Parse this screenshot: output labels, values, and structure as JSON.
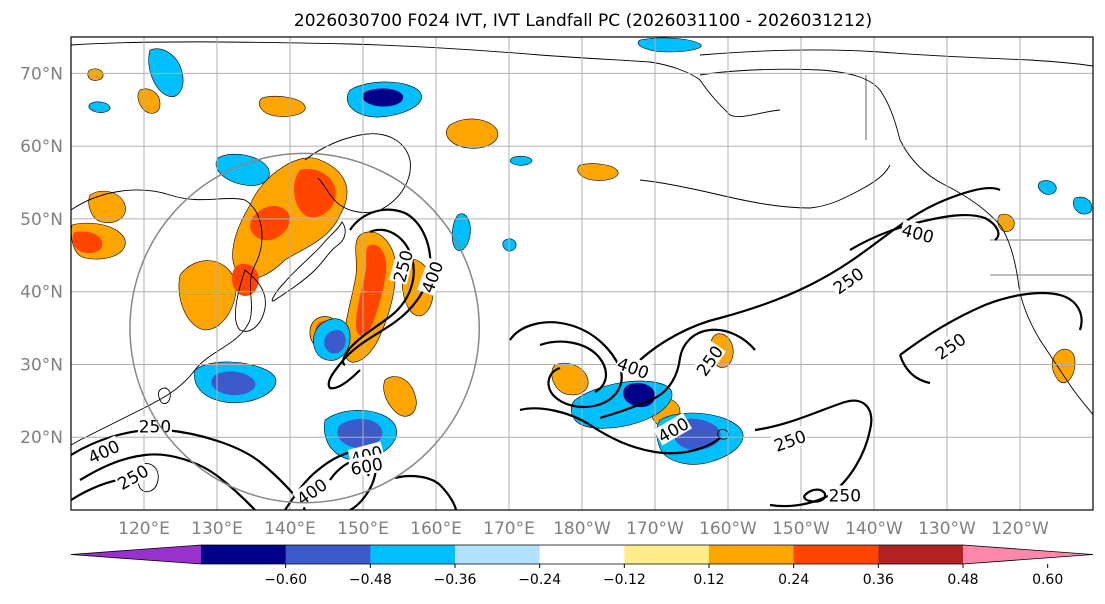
{
  "title": "2026030700 F024 IVT, IVT Landfall PC (2026031100 - 2026031212)",
  "map": {
    "lon_range": [
      110,
      250
    ],
    "lat_range": [
      10,
      75
    ],
    "lon_ticks": [
      {
        "lon": 120,
        "label": "120°E"
      },
      {
        "lon": 130,
        "label": "130°E"
      },
      {
        "lon": 140,
        "label": "140°E"
      },
      {
        "lon": 150,
        "label": "150°E"
      },
      {
        "lon": 160,
        "label": "160°E"
      },
      {
        "lon": 170,
        "label": "170°E"
      },
      {
        "lon": 180,
        "label": "180°W"
      },
      {
        "lon": 190,
        "label": "170°W"
      },
      {
        "lon": 200,
        "label": "160°W"
      },
      {
        "lon": 210,
        "label": "150°W"
      },
      {
        "lon": 220,
        "label": "140°W"
      },
      {
        "lon": 230,
        "label": "130°W"
      },
      {
        "lon": 240,
        "label": "120°W"
      }
    ],
    "lat_ticks": [
      {
        "lat": 70,
        "label": "70°N"
      },
      {
        "lat": 60,
        "label": "60°N"
      },
      {
        "lat": 50,
        "label": "50°N"
      },
      {
        "lat": 40,
        "label": "40°N"
      },
      {
        "lat": 30,
        "label": "30°N"
      },
      {
        "lat": 20,
        "label": "20°N"
      }
    ],
    "gridlines": true,
    "ivt_contour_labels": [
      {
        "text": "250",
        "lon": 121.5,
        "lat": 21.5,
        "rot": 0
      },
      {
        "text": "400",
        "lon": 114.5,
        "lat": 18.0,
        "rot": -25
      },
      {
        "text": "250",
        "lon": 118.5,
        "lat": 14.5,
        "rot": -30
      },
      {
        "text": "400",
        "lon": 150.5,
        "lat": 17.5,
        "rot": -15
      },
      {
        "text": "600",
        "lon": 150.5,
        "lat": 16.0,
        "rot": -10
      },
      {
        "text": "400",
        "lon": 143.0,
        "lat": 12.5,
        "rot": -35
      },
      {
        "text": "250",
        "lon": 155.5,
        "lat": 43.5,
        "rot": -75
      },
      {
        "text": "400",
        "lon": 159.5,
        "lat": 42.0,
        "rot": -70
      },
      {
        "text": "400",
        "lon": 187.0,
        "lat": 29.5,
        "rot": 20
      },
      {
        "text": "250",
        "lon": 197.5,
        "lat": 30.5,
        "rot": -55
      },
      {
        "text": "400",
        "lon": 192.5,
        "lat": 21.0,
        "rot": -30
      },
      {
        "text": "250",
        "lon": 208.5,
        "lat": 19.5,
        "rot": -20
      },
      {
        "text": "250",
        "lon": 216.0,
        "lat": 12.0,
        "rot": 0
      },
      {
        "text": "400",
        "lon": 226.0,
        "lat": 48.0,
        "rot": 15
      },
      {
        "text": "250",
        "lon": 216.5,
        "lat": 41.5,
        "rot": -35
      },
      {
        "text": "250",
        "lon": 230.5,
        "lat": 32.5,
        "rot": -35
      }
    ],
    "region_circle": {
      "lon": 142,
      "lat": 35,
      "radius_lat_deg": 24
    }
  },
  "colorbar": {
    "colors": [
      "#9932CC",
      "#00008B",
      "#3C5ACB",
      "#00BFFF",
      "#B0E2FF",
      "#FFFFFF",
      "#FFEC8B",
      "#FFA500",
      "#FF4500",
      "#B22222",
      "#FF88AA"
    ],
    "tick_labels": [
      "−0.60",
      "−0.48",
      "−0.36",
      "−0.24",
      "−0.12",
      "0.12",
      "0.24",
      "0.36",
      "0.48",
      "0.60"
    ]
  }
}
